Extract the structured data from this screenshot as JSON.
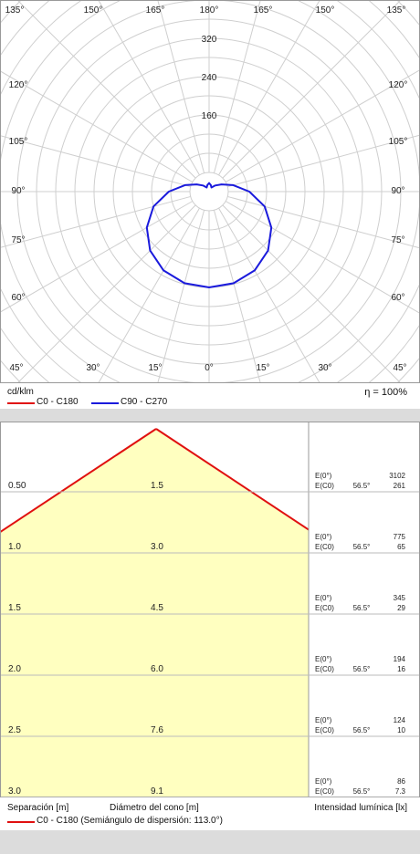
{
  "colors": {
    "c0_c180": "#e01010",
    "c90_c270": "#1a1adc",
    "grid": "#cfcfcf",
    "cone_fill": "#ffffc0",
    "band": "#dcdcdc"
  },
  "polar": {
    "unit_label": "cd/klm",
    "efficiency": "η = 100%",
    "legend": [
      {
        "label": "C0 - C180",
        "color": "#e01010"
      },
      {
        "label": "C90 - C270",
        "color": "#1a1adc"
      }
    ]
  },
  "cone": {
    "footer_separation": "Separación [m]",
    "footer_diameter": "Diámetro del cono [m]",
    "footer_illuminance": "Intensidad lumínica [lx]",
    "legend_label": "C0 - C180 (Semiángulo de dispersión: 113.0°)",
    "e0_label": "E(0°)",
    "ec0_label": "E(C0)",
    "angle_label": "56.5°"
  },
  "chart_data": [
    {
      "type": "polar",
      "title": "",
      "unit": "cd/klm",
      "radial_ticks": [
        160,
        240,
        320
      ],
      "radial_max": 400,
      "angle_labels": [
        "135°",
        "150°",
        "165°",
        "180°",
        "165°",
        "150°",
        "135°",
        "120°",
        "105°",
        "90°",
        "75°",
        "60°",
        "45°",
        "30°",
        "15°",
        "0°",
        "15°",
        "30°",
        "45°"
      ],
      "efficiency": "η = 100%",
      "series": [
        {
          "name": "C0 - C180",
          "color": "#e01010",
          "points": []
        },
        {
          "name": "C90 - C270",
          "color": "#1a1adc",
          "points": [
            {
              "angle": 0,
              "value": 200
            },
            {
              "angle": 15,
              "value": 198
            },
            {
              "angle": 30,
              "value": 190
            },
            {
              "angle": 45,
              "value": 174
            },
            {
              "angle": 60,
              "value": 150
            },
            {
              "angle": 75,
              "value": 120
            },
            {
              "angle": 90,
              "value": 84
            },
            {
              "angle": 105,
              "value": 52
            },
            {
              "angle": 120,
              "value": 30
            },
            {
              "angle": 135,
              "value": 18
            },
            {
              "angle": 150,
              "value": 10
            },
            {
              "angle": 165,
              "value": 14
            },
            {
              "angle": 180,
              "value": 18
            }
          ]
        }
      ]
    },
    {
      "type": "table",
      "title": "",
      "columns": [
        "Separación [m]",
        "Diámetro del cono [m]",
        "E(0°)",
        "E(C0)"
      ],
      "rows": [
        {
          "separation": "0.50",
          "diameter": "1.5",
          "e0": "3102",
          "ec0": "261"
        },
        {
          "separation": "1.0",
          "diameter": "3.0",
          "e0": "775",
          "ec0": "65"
        },
        {
          "separation": "1.5",
          "diameter": "4.5",
          "e0": "345",
          "ec0": "29"
        },
        {
          "separation": "2.0",
          "diameter": "6.0",
          "e0": "194",
          "ec0": "16"
        },
        {
          "separation": "2.5",
          "diameter": "7.6",
          "e0": "124",
          "ec0": "10"
        },
        {
          "separation": "3.0",
          "diameter": "9.1",
          "e0": "86",
          "ec0": "7.3"
        }
      ]
    }
  ]
}
